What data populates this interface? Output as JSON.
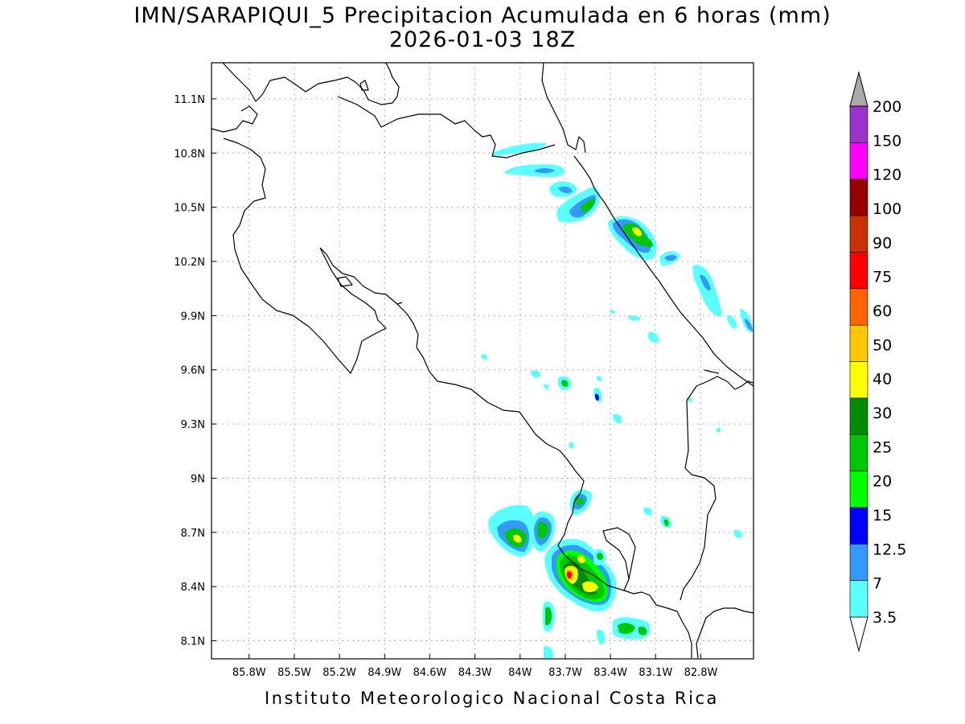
{
  "header": {
    "title_line1": "IMN/SARAPIQUI_5 Precipitacion Acumulada en 6 horas (mm)",
    "title_line2": "2026-01-03 18Z"
  },
  "footer": {
    "credit": "Instituto Meteorologico Nacional Costa Rica"
  },
  "map": {
    "lon_range": [
      -86.05,
      -82.45
    ],
    "lat_range": [
      8.0,
      11.3
    ],
    "lon_ticks": [
      {
        "value": -85.8,
        "label": "85.8W"
      },
      {
        "value": -85.5,
        "label": "85.5W"
      },
      {
        "value": -85.2,
        "label": "85.2W"
      },
      {
        "value": -84.9,
        "label": "84.9W"
      },
      {
        "value": -84.6,
        "label": "84.6W"
      },
      {
        "value": -84.3,
        "label": "84.3W"
      },
      {
        "value": -84.0,
        "label": "84W"
      },
      {
        "value": -83.7,
        "label": "83.7W"
      },
      {
        "value": -83.4,
        "label": "83.4W"
      },
      {
        "value": -83.1,
        "label": "83.1W"
      },
      {
        "value": -82.8,
        "label": "82.8W"
      }
    ],
    "lat_ticks": [
      {
        "value": 11.1,
        "label": "11.1N"
      },
      {
        "value": 10.8,
        "label": "10.8N"
      },
      {
        "value": 10.5,
        "label": "10.5N"
      },
      {
        "value": 10.2,
        "label": "10.2N"
      },
      {
        "value": 9.9,
        "label": "9.9N"
      },
      {
        "value": 9.6,
        "label": "9.6N"
      },
      {
        "value": 9.3,
        "label": "9.3N"
      },
      {
        "value": 9.0,
        "label": "9N"
      },
      {
        "value": 8.7,
        "label": "8.7N"
      },
      {
        "value": 8.4,
        "label": "8.4N"
      },
      {
        "value": 8.1,
        "label": "8.1N"
      }
    ],
    "grid": "dotted"
  },
  "colorbar": {
    "levels": [
      {
        "label": "3.5",
        "color": "#5cffff"
      },
      {
        "label": "7",
        "color": "#3399ff"
      },
      {
        "label": "12.5",
        "color": "#0000ff"
      },
      {
        "label": "15",
        "color": "#00ff00"
      },
      {
        "label": "20",
        "color": "#00c800"
      },
      {
        "label": "25",
        "color": "#008c00"
      },
      {
        "label": "30",
        "color": "#ffff00"
      },
      {
        "label": "40",
        "color": "#ffc800"
      },
      {
        "label": "50",
        "color": "#ff6400"
      },
      {
        "label": "60",
        "color": "#ff0000"
      },
      {
        "label": "75",
        "color": "#c83200"
      },
      {
        "label": "90",
        "color": "#960000"
      },
      {
        "label": "100",
        "color": "#ff00ff"
      },
      {
        "label": "120",
        "color": "#9933cc"
      },
      {
        "label": "150",
        "color": "#f5f5f5"
      },
      {
        "label": "200",
        "color": "#aaaaaa"
      }
    ]
  }
}
